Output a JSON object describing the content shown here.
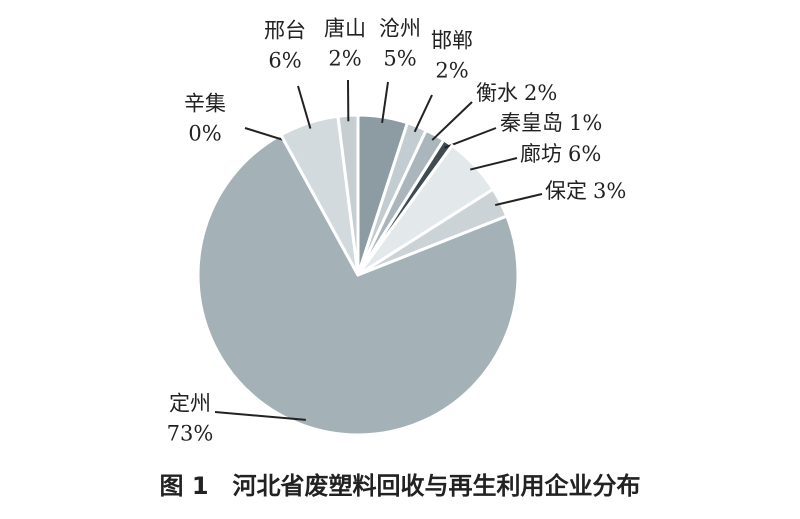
{
  "chart_data": {
    "type": "pie",
    "title": "图 1　河北省废塑料回收与再生利用企业分布",
    "categories": [
      "沧州",
      "邯郸",
      "衡水",
      "秦皇岛",
      "廊坊",
      "保定",
      "定州",
      "辛集",
      "邢台",
      "唐山"
    ],
    "values": [
      5,
      2,
      2,
      1,
      6,
      3,
      73,
      0,
      6,
      2
    ],
    "value_labels": [
      "5%",
      "2%",
      "2%",
      "1%",
      "6%",
      "3%",
      "73%",
      "0%",
      "6%",
      "2%"
    ],
    "colors": [
      "#8c9ca2",
      "#c3ccd0",
      "#aab6bb",
      "#3f4b51",
      "#e3e8ea",
      "#cbd3d6",
      "#a4b2b7",
      "#b9c3c7",
      "#d3dadd",
      "#c6ced1"
    ]
  }
}
